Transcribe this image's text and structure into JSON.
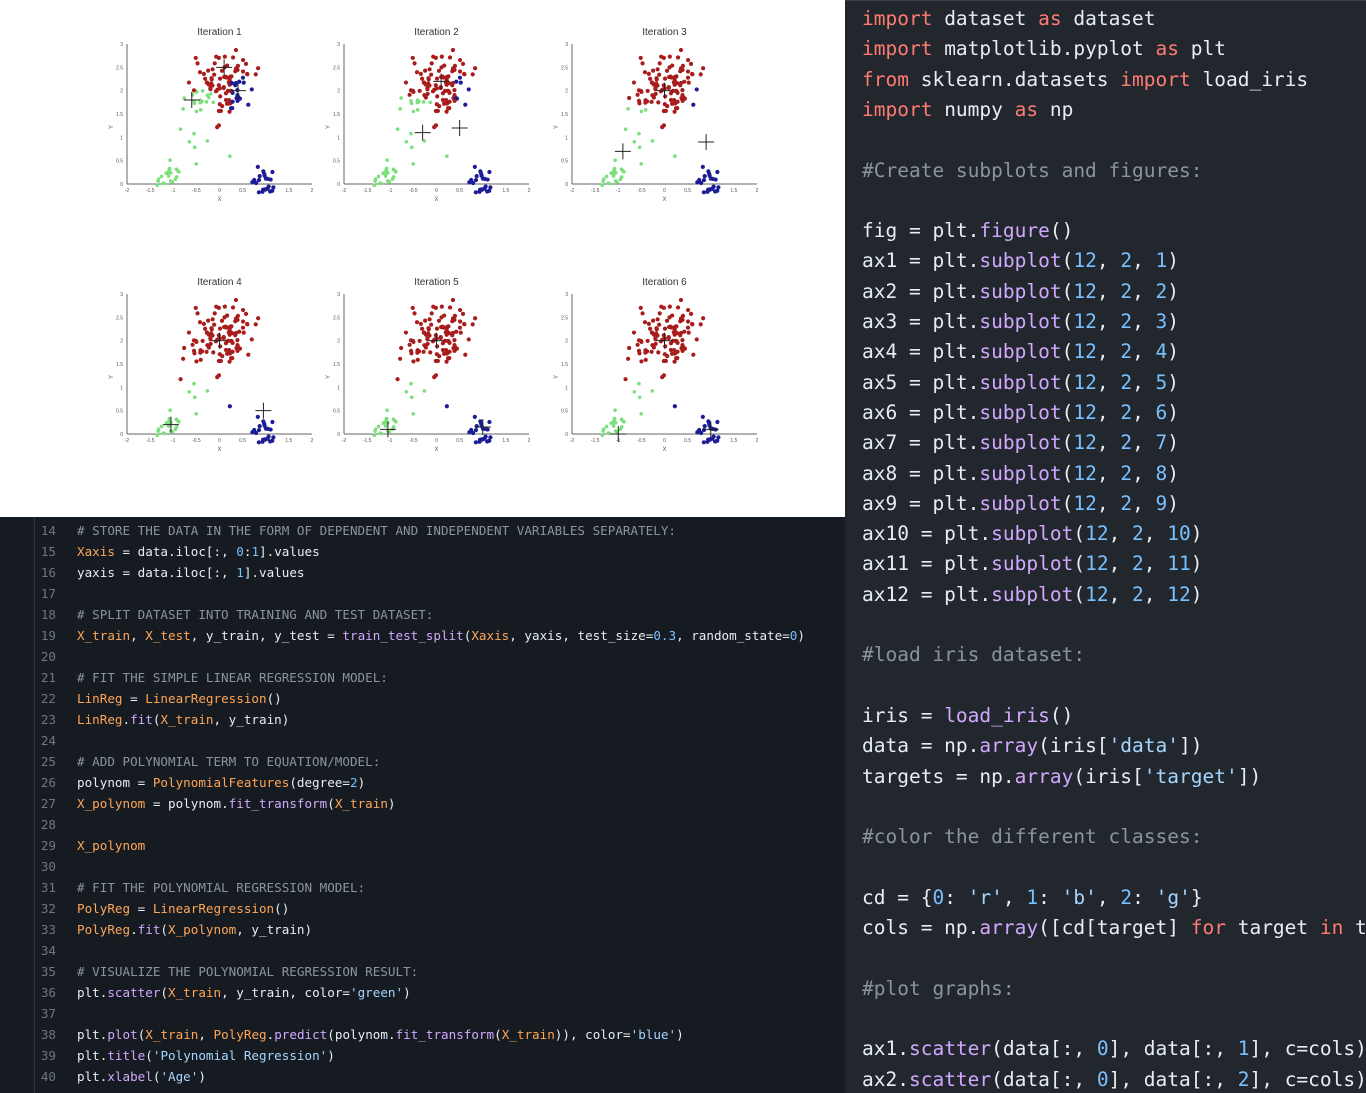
{
  "colors": {
    "plot_bg": "#ffffff",
    "code_bg_right": "#22272e",
    "code_bg_bottom": "#161b22",
    "kw": "#ff7b72",
    "str": "#a5d6ff",
    "num": "#79c0ff",
    "cm": "#8b949e",
    "var": "#ffa657",
    "fn": "#d2a8ff",
    "def": "#e6edf3",
    "cluster_red": "#a81c1c",
    "cluster_blue": "#1c1c96",
    "cluster_green": "#7be07b"
  },
  "plots": {
    "titles": [
      "Iteration 1",
      "Iteration 2",
      "Iteration 3",
      "Iteration 4",
      "Iteration 5",
      "Iteration 6"
    ],
    "xlabel": "X",
    "ylabel": "Y",
    "xticks": [
      "-2",
      "-1.5",
      "-1",
      "-0.5",
      "0",
      "0.5",
      "1",
      "1.5",
      "2"
    ],
    "yticks": [
      "0",
      "0.5",
      "1",
      "1.5",
      "2",
      "2.5",
      "3"
    ]
  },
  "right_code": {
    "lines": [
      [
        [
          "kw",
          "import"
        ],
        [
          "def",
          " dataset "
        ],
        [
          "kw",
          "as"
        ],
        [
          "def",
          " dataset"
        ]
      ],
      [
        [
          "kw",
          "import"
        ],
        [
          "def",
          " matplotlib.pyplot "
        ],
        [
          "kw",
          "as"
        ],
        [
          "def",
          " plt"
        ]
      ],
      [
        [
          "kw",
          "from"
        ],
        [
          "def",
          " sklearn.datasets "
        ],
        [
          "kw",
          "import"
        ],
        [
          "def",
          " load_iris"
        ]
      ],
      [
        [
          "kw",
          "import"
        ],
        [
          "def",
          " numpy "
        ],
        [
          "kw",
          "as"
        ],
        [
          "def",
          " np"
        ]
      ],
      [],
      [
        [
          "cm",
          "#Create subplots and figures:"
        ]
      ],
      [],
      [
        [
          "def",
          "fig = plt."
        ],
        [
          "fn",
          "figure"
        ],
        [
          "def",
          "()"
        ]
      ],
      [
        [
          "def",
          "ax1 = plt."
        ],
        [
          "fn",
          "subplot"
        ],
        [
          "def",
          "("
        ],
        [
          "num",
          "12"
        ],
        [
          "def",
          ", "
        ],
        [
          "num",
          "2"
        ],
        [
          "def",
          ", "
        ],
        [
          "num",
          "1"
        ],
        [
          "def",
          ")"
        ]
      ],
      [
        [
          "def",
          "ax2 = plt."
        ],
        [
          "fn",
          "subplot"
        ],
        [
          "def",
          "("
        ],
        [
          "num",
          "12"
        ],
        [
          "def",
          ", "
        ],
        [
          "num",
          "2"
        ],
        [
          "def",
          ", "
        ],
        [
          "num",
          "2"
        ],
        [
          "def",
          ")"
        ]
      ],
      [
        [
          "def",
          "ax3 = plt."
        ],
        [
          "fn",
          "subplot"
        ],
        [
          "def",
          "("
        ],
        [
          "num",
          "12"
        ],
        [
          "def",
          ", "
        ],
        [
          "num",
          "2"
        ],
        [
          "def",
          ", "
        ],
        [
          "num",
          "3"
        ],
        [
          "def",
          ")"
        ]
      ],
      [
        [
          "def",
          "ax4 = plt."
        ],
        [
          "fn",
          "subplot"
        ],
        [
          "def",
          "("
        ],
        [
          "num",
          "12"
        ],
        [
          "def",
          ", "
        ],
        [
          "num",
          "2"
        ],
        [
          "def",
          ", "
        ],
        [
          "num",
          "4"
        ],
        [
          "def",
          ")"
        ]
      ],
      [
        [
          "def",
          "ax5 = plt."
        ],
        [
          "fn",
          "subplot"
        ],
        [
          "def",
          "("
        ],
        [
          "num",
          "12"
        ],
        [
          "def",
          ", "
        ],
        [
          "num",
          "2"
        ],
        [
          "def",
          ", "
        ],
        [
          "num",
          "5"
        ],
        [
          "def",
          ")"
        ]
      ],
      [
        [
          "def",
          "ax6 = plt."
        ],
        [
          "fn",
          "subplot"
        ],
        [
          "def",
          "("
        ],
        [
          "num",
          "12"
        ],
        [
          "def",
          ", "
        ],
        [
          "num",
          "2"
        ],
        [
          "def",
          ", "
        ],
        [
          "num",
          "6"
        ],
        [
          "def",
          ")"
        ]
      ],
      [
        [
          "def",
          "ax7 = plt."
        ],
        [
          "fn",
          "subplot"
        ],
        [
          "def",
          "("
        ],
        [
          "num",
          "12"
        ],
        [
          "def",
          ", "
        ],
        [
          "num",
          "2"
        ],
        [
          "def",
          ", "
        ],
        [
          "num",
          "7"
        ],
        [
          "def",
          ")"
        ]
      ],
      [
        [
          "def",
          "ax8 = plt."
        ],
        [
          "fn",
          "subplot"
        ],
        [
          "def",
          "("
        ],
        [
          "num",
          "12"
        ],
        [
          "def",
          ", "
        ],
        [
          "num",
          "2"
        ],
        [
          "def",
          ", "
        ],
        [
          "num",
          "8"
        ],
        [
          "def",
          ")"
        ]
      ],
      [
        [
          "def",
          "ax9 = plt."
        ],
        [
          "fn",
          "subplot"
        ],
        [
          "def",
          "("
        ],
        [
          "num",
          "12"
        ],
        [
          "def",
          ", "
        ],
        [
          "num",
          "2"
        ],
        [
          "def",
          ", "
        ],
        [
          "num",
          "9"
        ],
        [
          "def",
          ")"
        ]
      ],
      [
        [
          "def",
          "ax10 = plt."
        ],
        [
          "fn",
          "subplot"
        ],
        [
          "def",
          "("
        ],
        [
          "num",
          "12"
        ],
        [
          "def",
          ", "
        ],
        [
          "num",
          "2"
        ],
        [
          "def",
          ", "
        ],
        [
          "num",
          "10"
        ],
        [
          "def",
          ")"
        ]
      ],
      [
        [
          "def",
          "ax11 = plt."
        ],
        [
          "fn",
          "subplot"
        ],
        [
          "def",
          "("
        ],
        [
          "num",
          "12"
        ],
        [
          "def",
          ", "
        ],
        [
          "num",
          "2"
        ],
        [
          "def",
          ", "
        ],
        [
          "num",
          "11"
        ],
        [
          "def",
          ")"
        ]
      ],
      [
        [
          "def",
          "ax12 = plt."
        ],
        [
          "fn",
          "subplot"
        ],
        [
          "def",
          "("
        ],
        [
          "num",
          "12"
        ],
        [
          "def",
          ", "
        ],
        [
          "num",
          "2"
        ],
        [
          "def",
          ", "
        ],
        [
          "num",
          "12"
        ],
        [
          "def",
          ")"
        ]
      ],
      [],
      [
        [
          "cm",
          "#load iris dataset:"
        ]
      ],
      [],
      [
        [
          "def",
          "iris = "
        ],
        [
          "fn",
          "load_iris"
        ],
        [
          "def",
          "()"
        ]
      ],
      [
        [
          "def",
          "data = np."
        ],
        [
          "fn",
          "array"
        ],
        [
          "def",
          "(iris["
        ],
        [
          "str",
          "'data'"
        ],
        [
          "def",
          "])"
        ]
      ],
      [
        [
          "def",
          "targets = np."
        ],
        [
          "fn",
          "array"
        ],
        [
          "def",
          "(iris["
        ],
        [
          "str",
          "'target'"
        ],
        [
          "def",
          "])"
        ]
      ],
      [],
      [
        [
          "cm",
          "#color the different classes:"
        ]
      ],
      [],
      [
        [
          "def",
          "cd = {"
        ],
        [
          "num",
          "0"
        ],
        [
          "def",
          ": "
        ],
        [
          "str",
          "'r'"
        ],
        [
          "def",
          ", "
        ],
        [
          "num",
          "1"
        ],
        [
          "def",
          ": "
        ],
        [
          "str",
          "'b'"
        ],
        [
          "def",
          ", "
        ],
        [
          "num",
          "2"
        ],
        [
          "def",
          ": "
        ],
        [
          "str",
          "'g'"
        ],
        [
          "def",
          "}"
        ]
      ],
      [
        [
          "def",
          "cols = np."
        ],
        [
          "fn",
          "array"
        ],
        [
          "def",
          "([cd[target] "
        ],
        [
          "kw",
          "for"
        ],
        [
          "def",
          " target "
        ],
        [
          "kw",
          "in"
        ],
        [
          "def",
          " tar"
        ]
      ],
      [],
      [
        [
          "cm",
          "#plot graphs:"
        ]
      ],
      [],
      [
        [
          "def",
          "ax1."
        ],
        [
          "fn",
          "scatter"
        ],
        [
          "def",
          "(data[:, "
        ],
        [
          "num",
          "0"
        ],
        [
          "def",
          "], data[:, "
        ],
        [
          "num",
          "1"
        ],
        [
          "def",
          "], c=cols)"
        ]
      ],
      [
        [
          "def",
          "ax2."
        ],
        [
          "fn",
          "scatter"
        ],
        [
          "def",
          "(data[:, "
        ],
        [
          "num",
          "0"
        ],
        [
          "def",
          "], data[:, "
        ],
        [
          "num",
          "2"
        ],
        [
          "def",
          "], c=cols)"
        ]
      ]
    ]
  },
  "bottom_code": {
    "lines": [
      {
        "n": "14",
        "t": [
          [
            "cm",
            "# STORE THE DATA IN THE FORM OF DEPENDENT AND INDEPENDENT VARIABLES SEPARATELY:"
          ]
        ]
      },
      {
        "n": "15",
        "t": [
          [
            "var",
            "Xaxis"
          ],
          [
            "def",
            " = data.iloc[:, "
          ],
          [
            "num",
            "0"
          ],
          [
            "def",
            ":"
          ],
          [
            "num",
            "1"
          ],
          [
            "def",
            "].values"
          ]
        ]
      },
      {
        "n": "16",
        "t": [
          [
            "def",
            "yaxis = data.iloc[:, "
          ],
          [
            "num",
            "1"
          ],
          [
            "def",
            "].values"
          ]
        ]
      },
      {
        "n": "17",
        "t": []
      },
      {
        "n": "18",
        "t": [
          [
            "cm",
            "# SPLIT DATASET INTO TRAINING AND TEST DATASET:"
          ]
        ]
      },
      {
        "n": "19",
        "t": [
          [
            "var",
            "X_train"
          ],
          [
            "def",
            ", "
          ],
          [
            "var",
            "X_test"
          ],
          [
            "def",
            ", y_train, y_test = "
          ],
          [
            "fn",
            "train_test_split"
          ],
          [
            "def",
            "("
          ],
          [
            "var",
            "Xaxis"
          ],
          [
            "def",
            ", yaxis, test_size="
          ],
          [
            "num",
            "0.3"
          ],
          [
            "def",
            ", random_state="
          ],
          [
            "num",
            "0"
          ],
          [
            "def",
            ")"
          ]
        ]
      },
      {
        "n": "20",
        "t": []
      },
      {
        "n": "21",
        "t": [
          [
            "cm",
            "# FIT THE SIMPLE LINEAR REGRESSION MODEL:"
          ]
        ]
      },
      {
        "n": "22",
        "t": [
          [
            "var",
            "LinReg"
          ],
          [
            "def",
            " = "
          ],
          [
            "var",
            "LinearRegression"
          ],
          [
            "def",
            "()"
          ]
        ]
      },
      {
        "n": "23",
        "t": [
          [
            "var",
            "LinReg"
          ],
          [
            "def",
            "."
          ],
          [
            "fn",
            "fit"
          ],
          [
            "def",
            "("
          ],
          [
            "var",
            "X_train"
          ],
          [
            "def",
            ", y_train)"
          ]
        ]
      },
      {
        "n": "24",
        "t": []
      },
      {
        "n": "25",
        "t": [
          [
            "cm",
            "# ADD POLYNOMIAL TERM TO EQUATION/MODEL:"
          ]
        ]
      },
      {
        "n": "26",
        "t": [
          [
            "def",
            "polynom = "
          ],
          [
            "var",
            "PolynomialFeatures"
          ],
          [
            "def",
            "(degree="
          ],
          [
            "num",
            "2"
          ],
          [
            "def",
            ")"
          ]
        ]
      },
      {
        "n": "27",
        "t": [
          [
            "var",
            "X_polynom"
          ],
          [
            "def",
            " = polynom."
          ],
          [
            "fn",
            "fit_transform"
          ],
          [
            "def",
            "("
          ],
          [
            "var",
            "X_train"
          ],
          [
            "def",
            ")"
          ]
        ]
      },
      {
        "n": "28",
        "t": []
      },
      {
        "n": "29",
        "t": [
          [
            "var",
            "X_polynom"
          ]
        ]
      },
      {
        "n": "30",
        "t": []
      },
      {
        "n": "31",
        "t": [
          [
            "cm",
            "# FIT THE POLYNOMIAL REGRESSION MODEL:"
          ]
        ]
      },
      {
        "n": "32",
        "t": [
          [
            "var",
            "PolyReg"
          ],
          [
            "def",
            " = "
          ],
          [
            "var",
            "LinearRegression"
          ],
          [
            "def",
            "()"
          ]
        ]
      },
      {
        "n": "33",
        "t": [
          [
            "var",
            "PolyReg"
          ],
          [
            "def",
            "."
          ],
          [
            "fn",
            "fit"
          ],
          [
            "def",
            "("
          ],
          [
            "var",
            "X_polynom"
          ],
          [
            "def",
            ", y_train)"
          ]
        ]
      },
      {
        "n": "34",
        "t": []
      },
      {
        "n": "35",
        "t": [
          [
            "cm",
            "# VISUALIZE THE POLYNOMIAL REGRESSION RESULT:"
          ]
        ]
      },
      {
        "n": "36",
        "t": [
          [
            "def",
            "plt."
          ],
          [
            "fn",
            "scatter"
          ],
          [
            "def",
            "("
          ],
          [
            "var",
            "X_train"
          ],
          [
            "def",
            ", y_train, color="
          ],
          [
            "str",
            "'green'"
          ],
          [
            "def",
            ")"
          ]
        ]
      },
      {
        "n": "37",
        "t": []
      },
      {
        "n": "38",
        "t": [
          [
            "def",
            "plt."
          ],
          [
            "fn",
            "plot"
          ],
          [
            "def",
            "("
          ],
          [
            "var",
            "X_train"
          ],
          [
            "def",
            ", "
          ],
          [
            "var",
            "PolyReg"
          ],
          [
            "def",
            "."
          ],
          [
            "fn",
            "predict"
          ],
          [
            "def",
            "(polynom."
          ],
          [
            "fn",
            "fit_transform"
          ],
          [
            "def",
            "("
          ],
          [
            "var",
            "X_train"
          ],
          [
            "def",
            ")), color="
          ],
          [
            "str",
            "'blue'"
          ],
          [
            "def",
            ")"
          ]
        ]
      },
      {
        "n": "39",
        "t": [
          [
            "def",
            "plt."
          ],
          [
            "fn",
            "title"
          ],
          [
            "def",
            "("
          ],
          [
            "str",
            "'Polynomial Regression'"
          ],
          [
            "def",
            ")"
          ]
        ]
      },
      {
        "n": "40",
        "t": [
          [
            "def",
            "plt."
          ],
          [
            "fn",
            "xlabel"
          ],
          [
            "def",
            "("
          ],
          [
            "str",
            "'Age'"
          ],
          [
            "def",
            ")"
          ]
        ]
      }
    ]
  }
}
